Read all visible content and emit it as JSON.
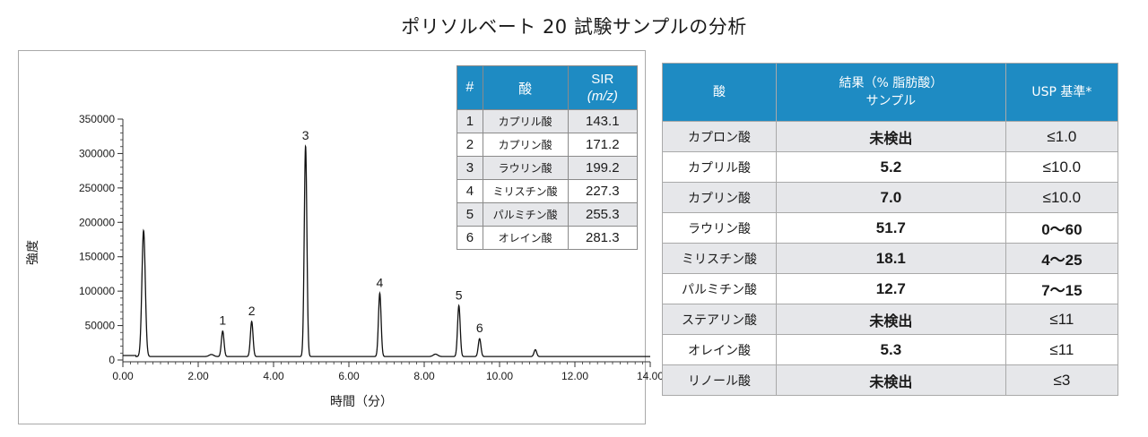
{
  "title": "ポリソルベート 20 試験サンプルの分析",
  "chart_data": {
    "type": "line",
    "xlabel": "時間（分）",
    "ylabel": "強度",
    "xlim": [
      0,
      14
    ],
    "ylim": [
      0,
      350000
    ],
    "x_ticks": [
      "0.00",
      "2.00",
      "4.00",
      "6.00",
      "8.00",
      "10.00",
      "12.00",
      "14.00"
    ],
    "y_ticks": [
      "0",
      "50000",
      "100000",
      "150000",
      "200000",
      "250000",
      "300000",
      "350000"
    ],
    "baseline": 5000,
    "peaks": [
      {
        "label": "",
        "x": 0.55,
        "y": 188000
      },
      {
        "label": "1",
        "x": 2.65,
        "y": 42000
      },
      {
        "label": "2",
        "x": 3.42,
        "y": 56000
      },
      {
        "label": "3",
        "x": 4.85,
        "y": 311000
      },
      {
        "label": "4",
        "x": 6.82,
        "y": 97000
      },
      {
        "label": "5",
        "x": 8.92,
        "y": 79000
      },
      {
        "label": "6",
        "x": 9.47,
        "y": 31000
      },
      {
        "label": "",
        "x": 10.95,
        "y": 15000
      }
    ]
  },
  "sir_table": {
    "headers": [
      "#",
      "酸",
      "SIR",
      "(m/z)"
    ],
    "rows": [
      {
        "n": "1",
        "acid": "カプリル酸",
        "mz": "143.1"
      },
      {
        "n": "2",
        "acid": "カプリン酸",
        "mz": "171.2"
      },
      {
        "n": "3",
        "acid": "ラウリン酸",
        "mz": "199.2"
      },
      {
        "n": "4",
        "acid": "ミリスチン酸",
        "mz": "227.3"
      },
      {
        "n": "5",
        "acid": "パルミチン酸",
        "mz": "255.3"
      },
      {
        "n": "6",
        "acid": "オレイン酸",
        "mz": "281.3"
      }
    ]
  },
  "results_table": {
    "headers": {
      "acid": "酸",
      "result_line1": "結果（% 脂肪酸）",
      "result_line2": "サンプル",
      "usp": "USP 基準*"
    },
    "rows": [
      {
        "acid": "カプロン酸",
        "result": "未検出",
        "usp": "≤1.0"
      },
      {
        "acid": "カプリル酸",
        "result": "5.2",
        "usp": "≤10.0"
      },
      {
        "acid": "カプリン酸",
        "result": "7.0",
        "usp": "≤10.0"
      },
      {
        "acid": "ラウリン酸",
        "result": "51.7",
        "usp": "0～60"
      },
      {
        "acid": "ミリスチン酸",
        "result": "18.1",
        "usp": "4～25"
      },
      {
        "acid": "パルミチン酸",
        "result": "12.7",
        "usp": "7～15"
      },
      {
        "acid": "ステアリン酸",
        "result": "未検出",
        "usp": "≤11"
      },
      {
        "acid": "オレイン酸",
        "result": "5.3",
        "usp": "≤11"
      },
      {
        "acid": "リノール酸",
        "result": "未検出",
        "usp": "≤3"
      }
    ]
  }
}
